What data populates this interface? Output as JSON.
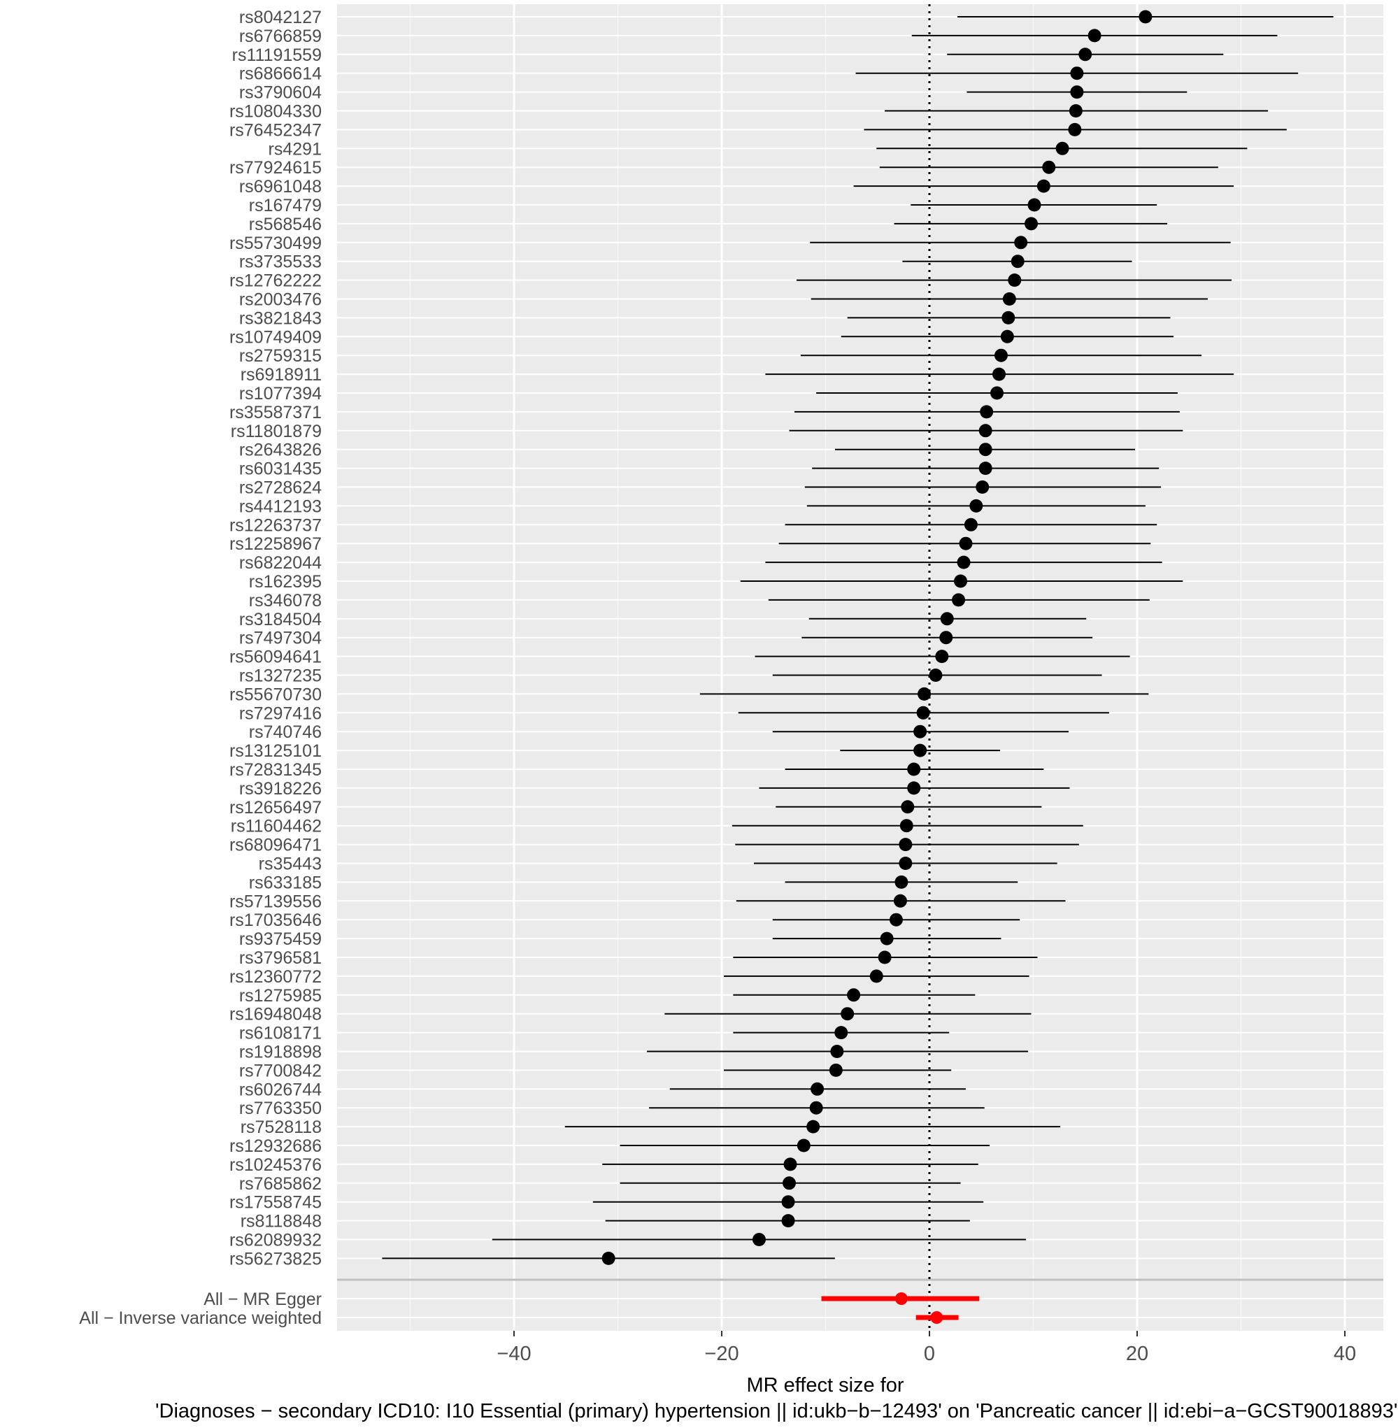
{
  "chart_data": {
    "type": "forest",
    "xlabel_line1": "MR effect size for",
    "xlabel_line2": "'Diagnoses − secondary ICD10: I10 Essential (primary) hypertension || id:ukb−b−12493' on 'Pancreatic cancer || id:ebi−a−GCST90018893'",
    "ylabel": "",
    "xlim": [
      -57,
      42
    ],
    "x_ticks": [
      -40,
      -20,
      0,
      20,
      40
    ],
    "x_tick_labels": [
      "−40",
      "−20",
      "0",
      "20",
      "40"
    ],
    "reference_line": 0,
    "grid": true,
    "point_color": "#000000",
    "summary_color": "#ff0000",
    "snps": [
      {
        "label": "rs8042127",
        "b": 20.8,
        "lo": 2.7,
        "hi": 38.9
      },
      {
        "label": "rs6766859",
        "b": 15.9,
        "lo": -1.7,
        "hi": 33.5
      },
      {
        "label": "rs11191559",
        "b": 15.0,
        "lo": 1.7,
        "hi": 28.3
      },
      {
        "label": "rs6866614",
        "b": 14.2,
        "lo": -7.1,
        "hi": 35.5
      },
      {
        "label": "rs3790604",
        "b": 14.2,
        "lo": 3.6,
        "hi": 24.8
      },
      {
        "label": "rs10804330",
        "b": 14.1,
        "lo": -4.3,
        "hi": 32.6
      },
      {
        "label": "rs76452347",
        "b": 14.0,
        "lo": -6.3,
        "hi": 34.4
      },
      {
        "label": "rs4291",
        "b": 12.8,
        "lo": -5.1,
        "hi": 30.6
      },
      {
        "label": "rs77924615",
        "b": 11.5,
        "lo": -4.8,
        "hi": 27.8
      },
      {
        "label": "rs6961048",
        "b": 11.0,
        "lo": -7.3,
        "hi": 29.3
      },
      {
        "label": "rs167479",
        "b": 10.1,
        "lo": -1.8,
        "hi": 21.9
      },
      {
        "label": "rs568546",
        "b": 9.8,
        "lo": -3.4,
        "hi": 22.9
      },
      {
        "label": "rs55730499",
        "b": 8.8,
        "lo": -11.5,
        "hi": 29.0
      },
      {
        "label": "rs3735533",
        "b": 8.5,
        "lo": -2.6,
        "hi": 19.5
      },
      {
        "label": "rs12762222",
        "b": 8.2,
        "lo": -12.8,
        "hi": 29.1
      },
      {
        "label": "rs2003476",
        "b": 7.7,
        "lo": -11.4,
        "hi": 26.8
      },
      {
        "label": "rs3821843",
        "b": 7.6,
        "lo": -7.9,
        "hi": 23.2
      },
      {
        "label": "rs10749409",
        "b": 7.5,
        "lo": -8.5,
        "hi": 23.5
      },
      {
        "label": "rs2759315",
        "b": 6.9,
        "lo": -12.4,
        "hi": 26.2
      },
      {
        "label": "rs6918911",
        "b": 6.7,
        "lo": -15.8,
        "hi": 29.3
      },
      {
        "label": "rs1077394",
        "b": 6.5,
        "lo": -10.9,
        "hi": 23.9
      },
      {
        "label": "rs35587371",
        "b": 5.5,
        "lo": -13.0,
        "hi": 24.1
      },
      {
        "label": "rs11801879",
        "b": 5.4,
        "lo": -13.5,
        "hi": 24.4
      },
      {
        "label": "rs2643826",
        "b": 5.4,
        "lo": -9.1,
        "hi": 19.8
      },
      {
        "label": "rs6031435",
        "b": 5.4,
        "lo": -11.3,
        "hi": 22.1
      },
      {
        "label": "rs2728624",
        "b": 5.1,
        "lo": -12.0,
        "hi": 22.3
      },
      {
        "label": "rs4412193",
        "b": 4.5,
        "lo": -11.8,
        "hi": 20.8
      },
      {
        "label": "rs12263737",
        "b": 4.0,
        "lo": -13.9,
        "hi": 21.9
      },
      {
        "label": "rs12258967",
        "b": 3.5,
        "lo": -14.5,
        "hi": 21.3
      },
      {
        "label": "rs6822044",
        "b": 3.3,
        "lo": -15.8,
        "hi": 22.4
      },
      {
        "label": "rs162395",
        "b": 3.0,
        "lo": -18.2,
        "hi": 24.4
      },
      {
        "label": "rs346078",
        "b": 2.8,
        "lo": -15.5,
        "hi": 21.2
      },
      {
        "label": "rs3184504",
        "b": 1.7,
        "lo": -11.6,
        "hi": 15.1
      },
      {
        "label": "rs7497304",
        "b": 1.6,
        "lo": -12.3,
        "hi": 15.7
      },
      {
        "label": "rs56094641",
        "b": 1.2,
        "lo": -16.8,
        "hi": 19.3
      },
      {
        "label": "rs1327235",
        "b": 0.6,
        "lo": -15.1,
        "hi": 16.6
      },
      {
        "label": "rs55670730",
        "b": -0.5,
        "lo": -22.1,
        "hi": 21.1
      },
      {
        "label": "rs7297416",
        "b": -0.6,
        "lo": -18.4,
        "hi": 17.3
      },
      {
        "label": "rs740746",
        "b": -0.9,
        "lo": -15.1,
        "hi": 13.4
      },
      {
        "label": "rs13125101",
        "b": -0.9,
        "lo": -8.6,
        "hi": 6.8
      },
      {
        "label": "rs72831345",
        "b": -1.5,
        "lo": -13.9,
        "hi": 11.0
      },
      {
        "label": "rs3918226",
        "b": -1.5,
        "lo": -16.4,
        "hi": 13.5
      },
      {
        "label": "rs12656497",
        "b": -2.1,
        "lo": -14.8,
        "hi": 10.8
      },
      {
        "label": "rs11604462",
        "b": -2.2,
        "lo": -19.0,
        "hi": 14.8
      },
      {
        "label": "rs68096471",
        "b": -2.3,
        "lo": -18.7,
        "hi": 14.4
      },
      {
        "label": "rs35443",
        "b": -2.3,
        "lo": -16.9,
        "hi": 12.3
      },
      {
        "label": "rs633185",
        "b": -2.7,
        "lo": -13.9,
        "hi": 8.5
      },
      {
        "label": "rs57139556",
        "b": -2.8,
        "lo": -18.6,
        "hi": 13.1
      },
      {
        "label": "rs17035646",
        "b": -3.2,
        "lo": -15.1,
        "hi": 8.7
      },
      {
        "label": "rs9375459",
        "b": -4.1,
        "lo": -15.1,
        "hi": 6.9
      },
      {
        "label": "rs3796581",
        "b": -4.3,
        "lo": -18.9,
        "hi": 10.4
      },
      {
        "label": "rs12360772",
        "b": -5.1,
        "lo": -19.8,
        "hi": 9.6
      },
      {
        "label": "rs1275985",
        "b": -7.3,
        "lo": -18.9,
        "hi": 4.4
      },
      {
        "label": "rs16948048",
        "b": -7.9,
        "lo": -25.5,
        "hi": 9.8
      },
      {
        "label": "rs6108171",
        "b": -8.5,
        "lo": -18.9,
        "hi": 1.9
      },
      {
        "label": "rs1918898",
        "b": -8.9,
        "lo": -27.2,
        "hi": 9.5
      },
      {
        "label": "rs7700842",
        "b": -9.0,
        "lo": -19.8,
        "hi": 2.1
      },
      {
        "label": "rs6026744",
        "b": -10.8,
        "lo": -25.0,
        "hi": 3.5
      },
      {
        "label": "rs7763350",
        "b": -10.9,
        "lo": -27.0,
        "hi": 5.3
      },
      {
        "label": "rs7528118",
        "b": -11.2,
        "lo": -35.1,
        "hi": 12.6
      },
      {
        "label": "rs12932686",
        "b": -12.1,
        "lo": -29.8,
        "hi": 5.8
      },
      {
        "label": "rs10245376",
        "b": -13.4,
        "lo": -31.5,
        "hi": 4.7
      },
      {
        "label": "rs7685862",
        "b": -13.5,
        "lo": -29.8,
        "hi": 3.0
      },
      {
        "label": "rs17558745",
        "b": -13.6,
        "lo": -32.4,
        "hi": 5.2
      },
      {
        "label": "rs8118848",
        "b": -13.6,
        "lo": -31.2,
        "hi": 3.9
      },
      {
        "label": "rs62089932",
        "b": -16.4,
        "lo": -42.1,
        "hi": 9.3
      },
      {
        "label": "rs56273825",
        "b": -30.9,
        "lo": -52.7,
        "hi": -9.1
      }
    ],
    "summary": [
      {
        "label": "All − MR Egger",
        "b": -2.7,
        "lo": -10.4,
        "hi": 4.8
      },
      {
        "label": "All − Inverse variance weighted",
        "b": 0.7,
        "lo": -1.3,
        "hi": 2.8
      }
    ]
  }
}
